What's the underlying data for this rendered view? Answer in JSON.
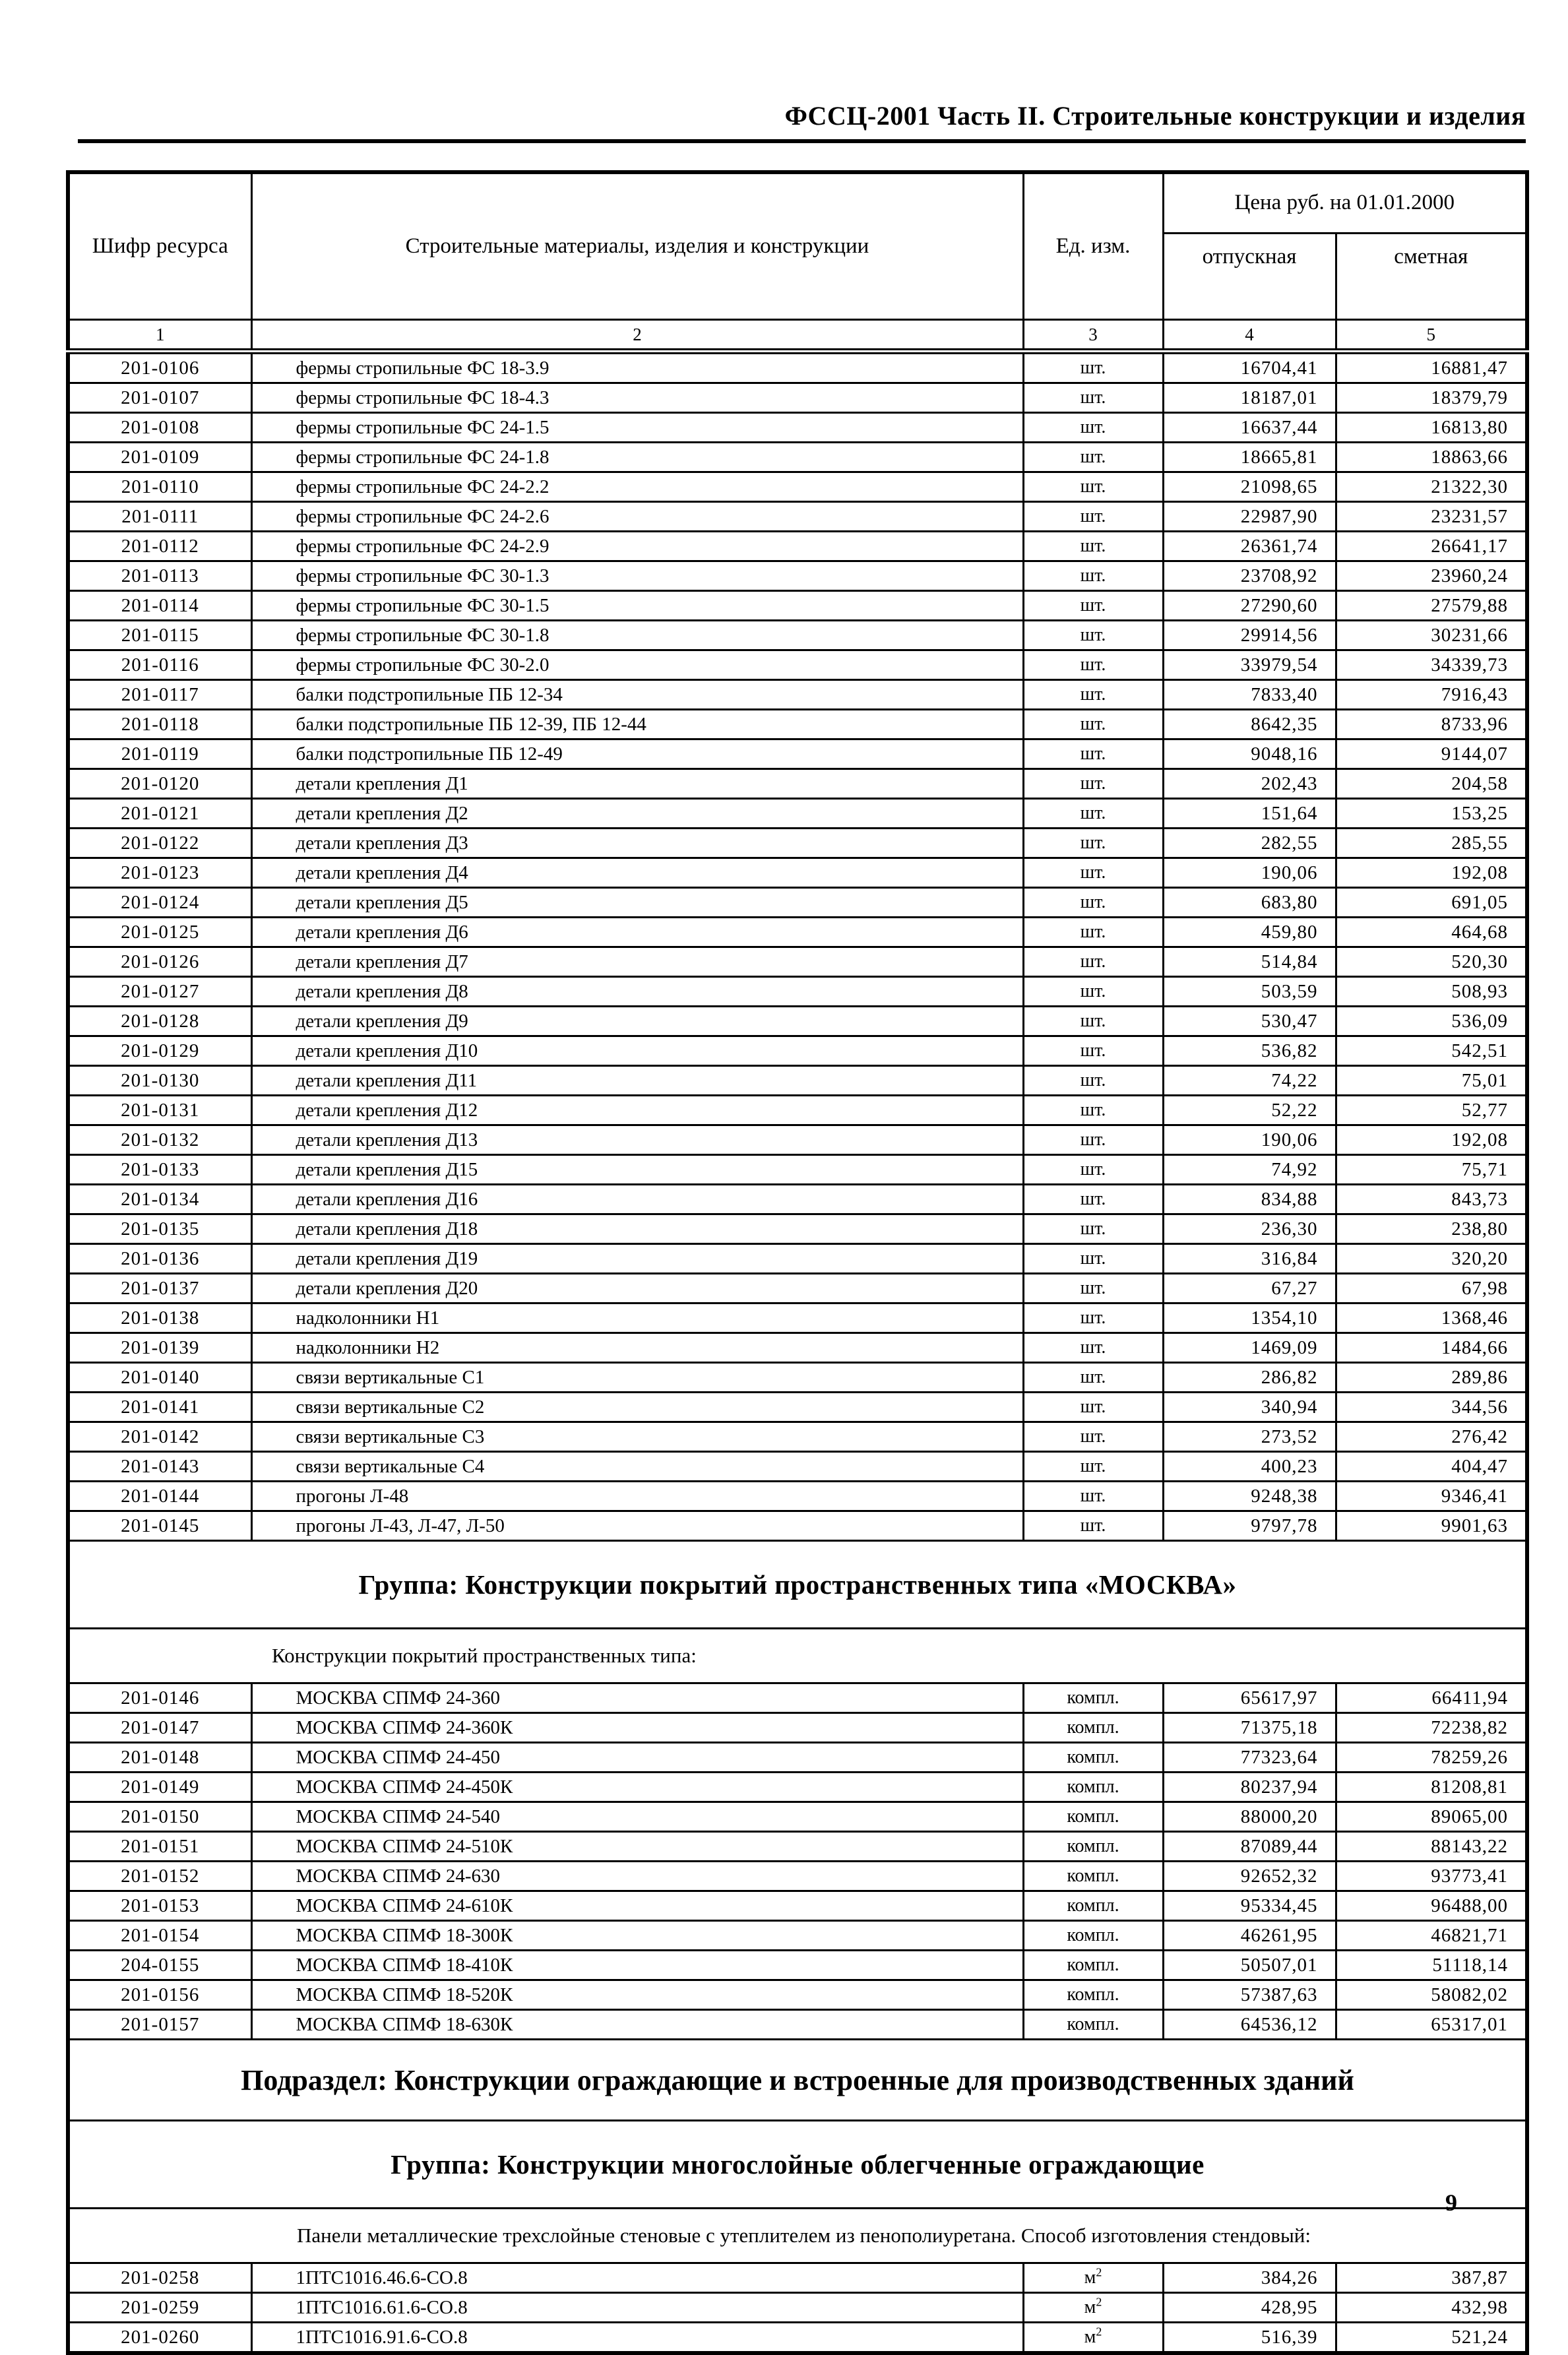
{
  "page": {
    "header": "ФССЦ-2001 Часть II. Строительные конструкции и изделия",
    "page_number": "9"
  },
  "table": {
    "columns": {
      "code": "Шифр ресурса",
      "name": "Строительные материалы, изделия и конструкции",
      "unit": "Ед. изм.",
      "price_group": "Цена руб. на 01.01.2000",
      "price_release": "отпускная",
      "price_estimate": "сметная"
    },
    "column_numbers": [
      "1",
      "2",
      "3",
      "4",
      "5"
    ],
    "rows": [
      {
        "type": "item",
        "code": "201-0106",
        "name": "фермы стропильные ФС 18-3.9",
        "unit": "шт.",
        "otpusknaya": "16704,41",
        "smetnaya": "16881,47"
      },
      {
        "type": "item",
        "code": "201-0107",
        "name": "фермы стропильные ФС 18-4.3",
        "unit": "шт.",
        "otpusknaya": "18187,01",
        "smetnaya": "18379,79"
      },
      {
        "type": "item",
        "code": "201-0108",
        "name": "фермы стропильные ФС 24-1.5",
        "unit": "шт.",
        "otpusknaya": "16637,44",
        "smetnaya": "16813,80"
      },
      {
        "type": "item",
        "code": "201-0109",
        "name": "фермы стропильные ФС 24-1.8",
        "unit": "шт.",
        "otpusknaya": "18665,81",
        "smetnaya": "18863,66"
      },
      {
        "type": "item",
        "code": "201-0110",
        "name": "фермы стропильные ФС 24-2.2",
        "unit": "шт.",
        "otpusknaya": "21098,65",
        "smetnaya": "21322,30"
      },
      {
        "type": "item",
        "code": "201-0111",
        "name": "фермы стропильные ФС 24-2.6",
        "unit": "шт.",
        "otpusknaya": "22987,90",
        "smetnaya": "23231,57"
      },
      {
        "type": "item",
        "code": "201-0112",
        "name": "фермы стропильные ФС 24-2.9",
        "unit": "шт.",
        "otpusknaya": "26361,74",
        "smetnaya": "26641,17"
      },
      {
        "type": "item",
        "code": "201-0113",
        "name": "фермы стропильные ФС 30-1.3",
        "unit": "шт.",
        "otpusknaya": "23708,92",
        "smetnaya": "23960,24"
      },
      {
        "type": "item",
        "code": "201-0114",
        "name": "фермы стропильные ФС 30-1.5",
        "unit": "шт.",
        "otpusknaya": "27290,60",
        "smetnaya": "27579,88"
      },
      {
        "type": "item",
        "code": "201-0115",
        "name": "фермы стропильные ФС 30-1.8",
        "unit": "шт.",
        "otpusknaya": "29914,56",
        "smetnaya": "30231,66"
      },
      {
        "type": "item",
        "code": "201-0116",
        "name": "фермы стропильные ФС 30-2.0",
        "unit": "шт.",
        "otpusknaya": "33979,54",
        "smetnaya": "34339,73"
      },
      {
        "type": "item",
        "code": "201-0117",
        "name": "балки подстропильные ПБ 12-34",
        "unit": "шт.",
        "otpusknaya": "7833,40",
        "smetnaya": "7916,43"
      },
      {
        "type": "item",
        "code": "201-0118",
        "name": "балки подстропильные ПБ 12-39, ПБ 12-44",
        "unit": "шт.",
        "otpusknaya": "8642,35",
        "smetnaya": "8733,96"
      },
      {
        "type": "item",
        "code": "201-0119",
        "name": "балки подстропильные ПБ 12-49",
        "unit": "шт.",
        "otpusknaya": "9048,16",
        "smetnaya": "9144,07"
      },
      {
        "type": "item",
        "code": "201-0120",
        "name": "детали крепления Д1",
        "unit": "шт.",
        "otpusknaya": "202,43",
        "smetnaya": "204,58"
      },
      {
        "type": "item",
        "code": "201-0121",
        "name": "детали крепления Д2",
        "unit": "шт.",
        "otpusknaya": "151,64",
        "smetnaya": "153,25"
      },
      {
        "type": "item",
        "code": "201-0122",
        "name": "детали крепления Д3",
        "unit": "шт.",
        "otpusknaya": "282,55",
        "smetnaya": "285,55"
      },
      {
        "type": "item",
        "code": "201-0123",
        "name": "детали крепления Д4",
        "unit": "шт.",
        "otpusknaya": "190,06",
        "smetnaya": "192,08"
      },
      {
        "type": "item",
        "code": "201-0124",
        "name": "детали крепления Д5",
        "unit": "шт.",
        "otpusknaya": "683,80",
        "smetnaya": "691,05"
      },
      {
        "type": "item",
        "code": "201-0125",
        "name": "детали крепления Д6",
        "unit": "шт.",
        "otpusknaya": "459,80",
        "smetnaya": "464,68"
      },
      {
        "type": "item",
        "code": "201-0126",
        "name": "детали крепления Д7",
        "unit": "шт.",
        "otpusknaya": "514,84",
        "smetnaya": "520,30"
      },
      {
        "type": "item",
        "code": "201-0127",
        "name": "детали крепления Д8",
        "unit": "шт.",
        "otpusknaya": "503,59",
        "smetnaya": "508,93"
      },
      {
        "type": "item",
        "code": "201-0128",
        "name": "детали крепления Д9",
        "unit": "шт.",
        "otpusknaya": "530,47",
        "smetnaya": "536,09"
      },
      {
        "type": "item",
        "code": "201-0129",
        "name": "детали крепления Д10",
        "unit": "шт.",
        "otpusknaya": "536,82",
        "smetnaya": "542,51"
      },
      {
        "type": "item",
        "code": "201-0130",
        "name": "детали крепления Д11",
        "unit": "шт.",
        "otpusknaya": "74,22",
        "smetnaya": "75,01"
      },
      {
        "type": "item",
        "code": "201-0131",
        "name": "детали крепления Д12",
        "unit": "шт.",
        "otpusknaya": "52,22",
        "smetnaya": "52,77"
      },
      {
        "type": "item",
        "code": "201-0132",
        "name": "детали крепления Д13",
        "unit": "шт.",
        "otpusknaya": "190,06",
        "smetnaya": "192,08"
      },
      {
        "type": "item",
        "code": "201-0133",
        "name": "детали крепления Д15",
        "unit": "шт.",
        "otpusknaya": "74,92",
        "smetnaya": "75,71"
      },
      {
        "type": "item",
        "code": "201-0134",
        "name": "детали крепления Д16",
        "unit": "шт.",
        "otpusknaya": "834,88",
        "smetnaya": "843,73"
      },
      {
        "type": "item",
        "code": "201-0135",
        "name": "детали крепления Д18",
        "unit": "шт.",
        "otpusknaya": "236,30",
        "smetnaya": "238,80"
      },
      {
        "type": "item",
        "code": "201-0136",
        "name": "детали крепления Д19",
        "unit": "шт.",
        "otpusknaya": "316,84",
        "smetnaya": "320,20"
      },
      {
        "type": "item",
        "code": "201-0137",
        "name": "детали крепления Д20",
        "unit": "шт.",
        "otpusknaya": "67,27",
        "smetnaya": "67,98"
      },
      {
        "type": "item",
        "code": "201-0138",
        "name": "надколонники Н1",
        "unit": "шт.",
        "otpusknaya": "1354,10",
        "smetnaya": "1368,46"
      },
      {
        "type": "item",
        "code": "201-0139",
        "name": "надколонники Н2",
        "unit": "шт.",
        "otpusknaya": "1469,09",
        "smetnaya": "1484,66"
      },
      {
        "type": "item",
        "code": "201-0140",
        "name": "связи вертикальные С1",
        "unit": "шт.",
        "otpusknaya": "286,82",
        "smetnaya": "289,86"
      },
      {
        "type": "item",
        "code": "201-0141",
        "name": "связи вертикальные С2",
        "unit": "шт.",
        "otpusknaya": "340,94",
        "smetnaya": "344,56"
      },
      {
        "type": "item",
        "code": "201-0142",
        "name": "связи вертикальные С3",
        "unit": "шт.",
        "otpusknaya": "273,52",
        "smetnaya": "276,42"
      },
      {
        "type": "item",
        "code": "201-0143",
        "name": "связи вертикальные С4",
        "unit": "шт.",
        "otpusknaya": "400,23",
        "smetnaya": "404,47"
      },
      {
        "type": "item",
        "code": "201-0144",
        "name": "прогоны Л-48",
        "unit": "шт.",
        "otpusknaya": "9248,38",
        "smetnaya": "9346,41"
      },
      {
        "type": "item",
        "code": "201-0145",
        "name": "прогоны Л-43, Л-47, Л-50",
        "unit": "шт.",
        "otpusknaya": "9797,78",
        "smetnaya": "9901,63"
      },
      {
        "type": "group",
        "text": "Группа: Конструкции покрытий пространственных типа «МОСКВА»"
      },
      {
        "type": "note_indent",
        "text": "Конструкции покрытий пространственных типа:"
      },
      {
        "type": "item",
        "code": "201-0146",
        "name": "МОСКВА СПМФ 24-360",
        "unit": "компл.",
        "otpusknaya": "65617,97",
        "smetnaya": "66411,94"
      },
      {
        "type": "item",
        "code": "201-0147",
        "name": "МОСКВА СПМФ 24-360К",
        "unit": "компл.",
        "otpusknaya": "71375,18",
        "smetnaya": "72238,82"
      },
      {
        "type": "item",
        "code": "201-0148",
        "name": "МОСКВА СПМФ 24-450",
        "unit": "компл.",
        "otpusknaya": "77323,64",
        "smetnaya": "78259,26"
      },
      {
        "type": "item",
        "code": "201-0149",
        "name": "МОСКВА СПМФ 24-450К",
        "unit": "компл.",
        "otpusknaya": "80237,94",
        "smetnaya": "81208,81"
      },
      {
        "type": "item",
        "code": "201-0150",
        "name": "МОСКВА СПМФ 24-540",
        "unit": "компл.",
        "otpusknaya": "88000,20",
        "smetnaya": "89065,00"
      },
      {
        "type": "item",
        "code": "201-0151",
        "name": "МОСКВА СПМФ 24-510К",
        "unit": "компл.",
        "otpusknaya": "87089,44",
        "smetnaya": "88143,22"
      },
      {
        "type": "item",
        "code": "201-0152",
        "name": "МОСКВА СПМФ 24-630",
        "unit": "компл.",
        "otpusknaya": "92652,32",
        "smetnaya": "93773,41"
      },
      {
        "type": "item",
        "code": "201-0153",
        "name": "МОСКВА СПМФ 24-610К",
        "unit": "компл.",
        "otpusknaya": "95334,45",
        "smetnaya": "96488,00"
      },
      {
        "type": "item",
        "code": "201-0154",
        "name": "МОСКВА СПМФ 18-300К",
        "unit": "компл.",
        "otpusknaya": "46261,95",
        "smetnaya": "46821,71"
      },
      {
        "type": "item",
        "code": "204-0155",
        "name": "МОСКВА СПМФ 18-410К",
        "unit": "компл.",
        "otpusknaya": "50507,01",
        "smetnaya": "51118,14"
      },
      {
        "type": "item",
        "code": "201-0156",
        "name": "МОСКВА СПМФ 18-520К",
        "unit": "компл.",
        "otpusknaya": "57387,63",
        "smetnaya": "58082,02"
      },
      {
        "type": "item",
        "code": "201-0157",
        "name": "МОСКВА СПМФ 18-630К",
        "unit": "компл.",
        "otpusknaya": "64536,12",
        "smetnaya": "65317,01"
      },
      {
        "type": "subsection",
        "text": "Подраздел: Конструкции ограждающие и встроенные для производственных зданий"
      },
      {
        "type": "group",
        "text": "Группа: Конструкции многослойные облегченные ограждающие"
      },
      {
        "type": "note_center",
        "text": "Панели металлические трехслойные стеновые с утеплителем из пенополиуретана. Способ изготовления стендовый:"
      },
      {
        "type": "item",
        "code": "201-0258",
        "name": "1ПТС1016.46.6-СО.8",
        "unit": "м2",
        "otpusknaya": "384,26",
        "smetnaya": "387,87"
      },
      {
        "type": "item",
        "code": "201-0259",
        "name": "1ПТС1016.61.6-СО.8",
        "unit": "м2",
        "otpusknaya": "428,95",
        "smetnaya": "432,98"
      },
      {
        "type": "item",
        "code": "201-0260",
        "name": "1ПТС1016.91.6-СО.8",
        "unit": "м2",
        "otpusknaya": "516,39",
        "smetnaya": "521,24"
      }
    ]
  }
}
